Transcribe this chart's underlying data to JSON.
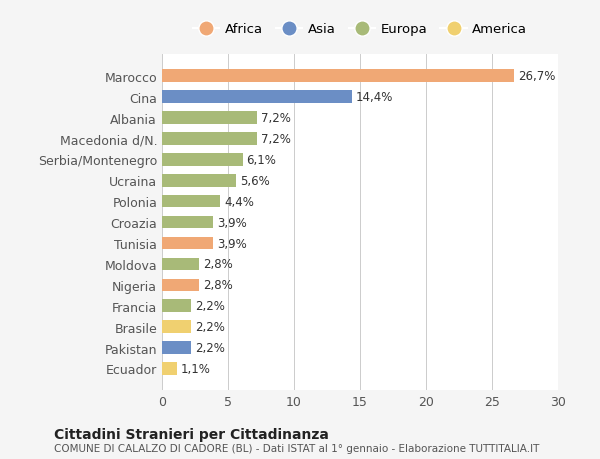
{
  "categories": [
    "Marocco",
    "Cina",
    "Albania",
    "Macedonia d/N.",
    "Serbia/Montenegro",
    "Ucraina",
    "Polonia",
    "Croazia",
    "Tunisia",
    "Moldova",
    "Nigeria",
    "Francia",
    "Brasile",
    "Pakistan",
    "Ecuador"
  ],
  "values": [
    26.7,
    14.4,
    7.2,
    7.2,
    6.1,
    5.6,
    4.4,
    3.9,
    3.9,
    2.8,
    2.8,
    2.2,
    2.2,
    2.2,
    1.1
  ],
  "labels": [
    "26,7%",
    "14,4%",
    "7,2%",
    "7,2%",
    "6,1%",
    "5,6%",
    "4,4%",
    "3,9%",
    "3,9%",
    "2,8%",
    "2,8%",
    "2,2%",
    "2,2%",
    "2,2%",
    "1,1%"
  ],
  "continents": [
    "Africa",
    "Asia",
    "Europa",
    "Europa",
    "Europa",
    "Europa",
    "Europa",
    "Europa",
    "Africa",
    "Europa",
    "Africa",
    "Europa",
    "America",
    "Asia",
    "America"
  ],
  "colors": {
    "Africa": "#F0A875",
    "Asia": "#6B8EC5",
    "Europa": "#A8BA78",
    "America": "#F0D070"
  },
  "legend_order": [
    "Africa",
    "Asia",
    "Europa",
    "America"
  ],
  "xlim": [
    0,
    30
  ],
  "xticks": [
    0,
    5,
    10,
    15,
    20,
    25,
    30
  ],
  "title": "Cittadini Stranieri per Cittadinanza",
  "subtitle": "COMUNE DI CALALZO DI CADORE (BL) - Dati ISTAT al 1° gennaio - Elaborazione TUTTITALIA.IT",
  "background_color": "#f5f5f5",
  "bar_background": "#ffffff",
  "grid_color": "#cccccc"
}
